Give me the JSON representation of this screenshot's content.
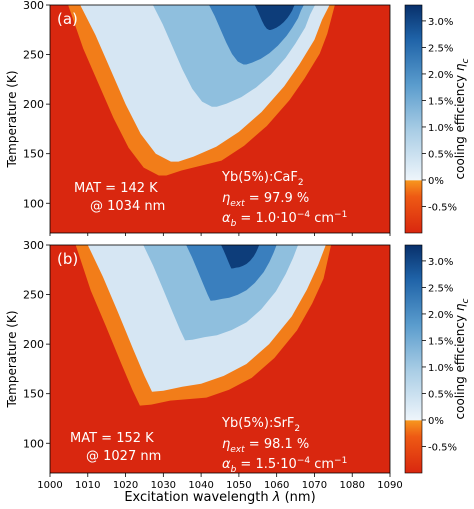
{
  "figure": {
    "xlabel": "Excitation wavelength",
    "xlabel_symbol": "λ",
    "xlabel_unit": "(nm)",
    "colors": {
      "heating_dark": "#d9270f",
      "heating_light": "#f7961e",
      "cooling_light": "#e8f1f9",
      "cooling_dark": "#08306b"
    }
  },
  "chart_data": [
    {
      "type": "heatmap",
      "panel_label": "(a)",
      "x_domain": [
        1000,
        1090
      ],
      "y_domain": [
        70,
        300
      ],
      "ylabel": "Temperature (K)",
      "xticks": [
        "1000",
        "1010",
        "1020",
        "1030",
        "1040",
        "1050",
        "1060",
        "1070",
        "1080",
        "1090"
      ],
      "xtick_values": [
        1000,
        1010,
        1020,
        1030,
        1040,
        1050,
        1060,
        1070,
        1080,
        1090
      ],
      "yticks": [
        "100",
        "150",
        "200",
        "250",
        "300"
      ],
      "ytick_values": [
        100,
        150,
        200,
        250,
        300
      ],
      "colorbar_label": "cooling efficiency",
      "colorbar_symbol": "η",
      "colorbar_subscript": "c",
      "colorbar_ticks": [
        "3.0%",
        "2.5%",
        "2.0%",
        "1.5%",
        "1.0%",
        "0.5%",
        "0%",
        "-0.5%"
      ],
      "colorbar_tick_values": [
        3.0,
        2.5,
        2.0,
        1.5,
        1.0,
        0.5,
        0.0,
        -0.5
      ],
      "colorbar_range": [
        -1.0,
        3.3
      ],
      "annotation_left": [
        "MAT = 142 K",
        "@ 1034 nm"
      ],
      "material": {
        "prefix": "Yb(5%):CaF",
        "sub": "2"
      },
      "eta_ext": {
        "label_sym": "η",
        "label_sub": "ext",
        "value": " = 97.9 %"
      },
      "alpha_b": {
        "label_sym": "α",
        "label_sub": "b",
        "value": " = 1.0·10",
        "exp": "−4",
        "unit": " cm",
        "unit_exp": "−1"
      },
      "boundary_wavelength": [
        1008,
        1012,
        1016,
        1020,
        1024,
        1028,
        1032,
        1034,
        1038,
        1044,
        1050,
        1056,
        1062,
        1066,
        1070,
        1072,
        1074
      ],
      "boundary_temperature": [
        300,
        270,
        235,
        200,
        170,
        150,
        142,
        142,
        147,
        157,
        172,
        192,
        218,
        240,
        265,
        285,
        300
      ],
      "peak_wavelength": 1063,
      "peak_temperature": 300
    },
    {
      "type": "heatmap",
      "panel_label": "(b)",
      "x_domain": [
        1000,
        1090
      ],
      "y_domain": [
        70,
        300
      ],
      "ylabel": "Temperature (K)",
      "xticks": [
        "1000",
        "1010",
        "1020",
        "1030",
        "1040",
        "1050",
        "1060",
        "1070",
        "1080",
        "1090"
      ],
      "xtick_values": [
        1000,
        1010,
        1020,
        1030,
        1040,
        1050,
        1060,
        1070,
        1080,
        1090
      ],
      "yticks": [
        "100",
        "150",
        "200",
        "250",
        "300"
      ],
      "ytick_values": [
        100,
        150,
        200,
        250,
        300
      ],
      "colorbar_label": "cooling efficiency",
      "colorbar_symbol": "η",
      "colorbar_subscript": "c",
      "colorbar_ticks": [
        "3.0%",
        "2.5%",
        "2.0%",
        "1.5%",
        "1.0%",
        "0.5%",
        "0%",
        "-0.5%"
      ],
      "colorbar_tick_values": [
        3.0,
        2.5,
        2.0,
        1.5,
        1.0,
        0.5,
        0.0,
        -0.5
      ],
      "colorbar_range": [
        -1.0,
        3.3
      ],
      "annotation_left": [
        "MAT = 152 K",
        "@ 1027 nm"
      ],
      "material": {
        "prefix": "Yb(5%):SrF",
        "sub": "2"
      },
      "eta_ext": {
        "label_sym": "η",
        "label_sub": "ext",
        "value": " = 98.1 %"
      },
      "alpha_b": {
        "label_sym": "α",
        "label_sub": "b",
        "value": " = 1.5·10",
        "exp": "−4",
        "unit": " cm",
        "unit_exp": "−1"
      },
      "boundary_wavelength": [
        1010,
        1014,
        1018,
        1022,
        1025,
        1027,
        1030,
        1035,
        1040,
        1046,
        1052,
        1058,
        1064,
        1068,
        1071,
        1073
      ],
      "boundary_temperature": [
        300,
        268,
        232,
        195,
        168,
        152,
        153,
        157,
        160,
        168,
        180,
        200,
        228,
        255,
        280,
        300
      ],
      "peak_wavelength": 1052,
      "peak_temperature": 300
    }
  ]
}
